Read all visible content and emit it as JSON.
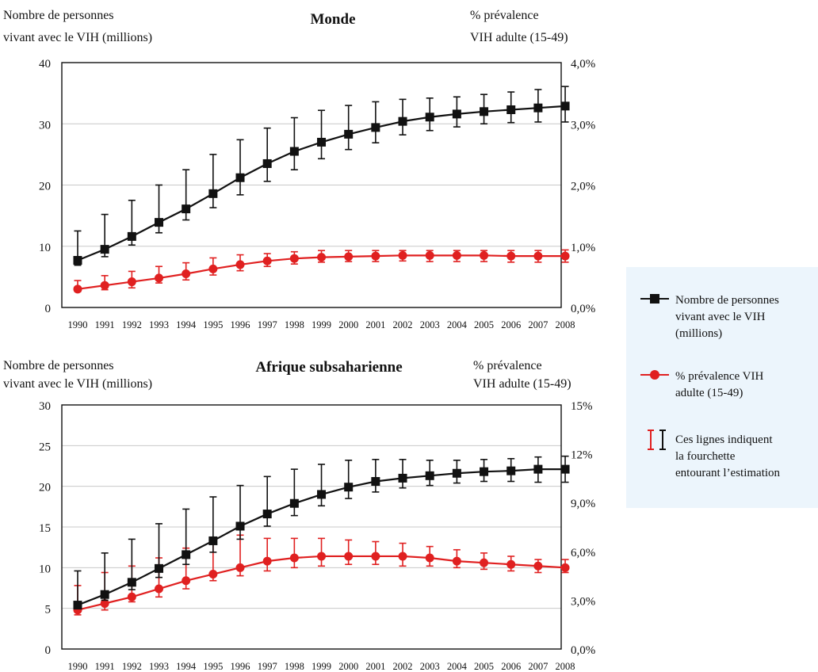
{
  "legend": {
    "count_label": [
      "Nombre de personnes",
      "vivant avec le VIH",
      "(millions)"
    ],
    "prev_label": [
      "% prévalence VIH",
      "adulte (15-49)"
    ],
    "range_label": [
      "Ces lignes indiquent",
      "la fourchette",
      "entourant l’estimation"
    ]
  },
  "colors": {
    "count": "#111111",
    "prevalence": "#e02020",
    "grid": "#c8c8c8",
    "legend_bg": "#ecf5fc"
  },
  "chart_data": [
    {
      "type": "line",
      "title": "Monde",
      "ylabel_left": [
        "Nombre de personnes",
        "vivant avec le VIH (millions)"
      ],
      "ylabel_right": [
        "% prévalence",
        "VIH adulte (15-49)"
      ],
      "x": [
        "1990",
        "1991",
        "1992",
        "1993",
        "1994",
        "1995",
        "1996",
        "1997",
        "1998",
        "1999",
        "2000",
        "2001",
        "2002",
        "2003",
        "2004",
        "2005",
        "2006",
        "2007",
        "2008"
      ],
      "ylim_left": [
        0,
        40
      ],
      "yticks_left": [
        "0",
        "10",
        "20",
        "30",
        "40"
      ],
      "ylim_right": [
        0,
        4
      ],
      "yticks_right": [
        "0,0%",
        "1,0%",
        "2,0%",
        "3,0%",
        "4,0%"
      ],
      "grid": true,
      "series": [
        {
          "name": "Nombre de personnes vivant avec le VIH (millions)",
          "axis": "left",
          "marker": "square",
          "values": [
            7.7,
            9.5,
            11.6,
            13.9,
            16.1,
            18.6,
            21.2,
            23.5,
            25.5,
            27.0,
            28.3,
            29.4,
            30.4,
            31.1,
            31.6,
            32.0,
            32.3,
            32.6,
            32.9
          ],
          "low": [
            6.9,
            8.3,
            10.2,
            12.2,
            14.3,
            16.3,
            18.4,
            20.6,
            22.5,
            24.3,
            25.8,
            26.9,
            28.2,
            28.9,
            29.5,
            30.0,
            30.2,
            30.3,
            30.3
          ],
          "high": [
            12.5,
            15.2,
            17.5,
            20.0,
            22.5,
            25.0,
            27.4,
            29.3,
            31.0,
            32.2,
            33.0,
            33.6,
            34.0,
            34.2,
            34.4,
            34.8,
            35.2,
            35.6,
            36.1
          ]
        },
        {
          "name": "% prévalence VIH adulte (15-49)",
          "axis": "right",
          "marker": "circle",
          "values": [
            0.3,
            0.36,
            0.42,
            0.48,
            0.55,
            0.63,
            0.7,
            0.76,
            0.8,
            0.82,
            0.83,
            0.84,
            0.85,
            0.85,
            0.85,
            0.85,
            0.84,
            0.84,
            0.84
          ],
          "low": [
            0.26,
            0.29,
            0.32,
            0.4,
            0.45,
            0.53,
            0.6,
            0.67,
            0.71,
            0.74,
            0.75,
            0.75,
            0.76,
            0.75,
            0.75,
            0.75,
            0.74,
            0.74,
            0.74
          ],
          "high": [
            0.44,
            0.52,
            0.59,
            0.67,
            0.73,
            0.81,
            0.86,
            0.88,
            0.91,
            0.93,
            0.93,
            0.93,
            0.93,
            0.93,
            0.93,
            0.93,
            0.93,
            0.93,
            0.94
          ]
        }
      ]
    },
    {
      "type": "line",
      "title": "Afrique subsaharienne",
      "ylabel_left": [
        "Nombre de personnes",
        "vivant avec le VIH (millions)"
      ],
      "ylabel_right": [
        "% prévalence",
        "VIH adulte (15-49)"
      ],
      "x": [
        "1990",
        "1991",
        "1992",
        "1993",
        "1994",
        "1995",
        "1996",
        "1997",
        "1998",
        "1999",
        "2000",
        "2001",
        "2002",
        "2003",
        "2004",
        "2005",
        "2006",
        "2007",
        "2008"
      ],
      "ylim_left": [
        0,
        30
      ],
      "yticks_left": [
        "0",
        "5",
        "10",
        "15",
        "20",
        "25",
        "30"
      ],
      "ylim_right": [
        0,
        15
      ],
      "yticks_right": [
        "0,0%",
        "3,0%",
        "6,0%",
        "9,0%",
        "12%",
        "15%"
      ],
      "grid": true,
      "series": [
        {
          "name": "Nombre de personnes vivant avec le VIH (millions)",
          "axis": "left",
          "marker": "square",
          "values": [
            5.4,
            6.7,
            8.2,
            9.9,
            11.6,
            13.3,
            15.1,
            16.6,
            17.9,
            19.0,
            19.9,
            20.6,
            21.0,
            21.3,
            21.6,
            21.8,
            21.9,
            22.1,
            22.1
          ],
          "low": [
            5.0,
            6.0,
            7.3,
            8.8,
            10.4,
            11.9,
            13.5,
            15.1,
            16.4,
            17.6,
            18.5,
            19.3,
            19.8,
            20.1,
            20.4,
            20.6,
            20.6,
            20.5,
            20.5
          ],
          "high": [
            9.6,
            11.8,
            13.5,
            15.4,
            17.2,
            18.7,
            20.1,
            21.2,
            22.1,
            22.7,
            23.2,
            23.3,
            23.3,
            23.2,
            23.2,
            23.3,
            23.4,
            23.6,
            23.7
          ]
        },
        {
          "name": "% prévalence VIH adulte (15-49)",
          "axis": "right",
          "marker": "circle",
          "values": [
            2.4,
            2.8,
            3.2,
            3.7,
            4.2,
            4.6,
            5.0,
            5.4,
            5.6,
            5.7,
            5.7,
            5.7,
            5.7,
            5.6,
            5.4,
            5.3,
            5.2,
            5.1,
            5.0
          ],
          "low": [
            2.1,
            2.4,
            2.9,
            3.2,
            3.7,
            4.2,
            4.5,
            4.8,
            5.0,
            5.1,
            5.2,
            5.2,
            5.1,
            5.1,
            5.0,
            4.9,
            4.8,
            4.7,
            4.7
          ],
          "high": [
            3.9,
            4.7,
            5.1,
            5.6,
            6.2,
            6.6,
            7.0,
            6.8,
            6.8,
            6.8,
            6.7,
            6.6,
            6.5,
            6.3,
            6.1,
            5.9,
            5.7,
            5.5,
            5.5
          ]
        }
      ]
    }
  ]
}
